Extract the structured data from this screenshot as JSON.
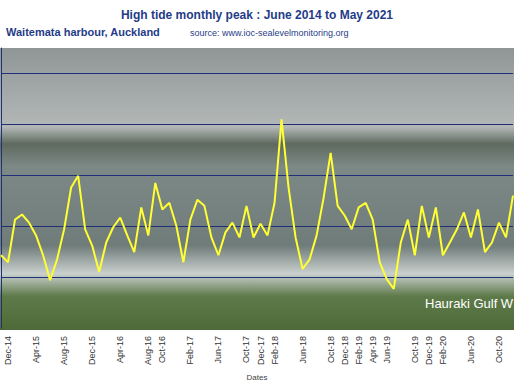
{
  "chart_data": {
    "type": "line",
    "title": "High tide monthly peak : June 2014 to May 2021",
    "subtitle": "Waitemata harbour, Auckland",
    "annotations": [
      "source: www.ioc-sealevelmonitoring.org",
      "Hauraki Gulf W"
    ],
    "x_label": "Dates",
    "categories": [
      null,
      "Dec-14",
      null,
      null,
      null,
      "Apr-15",
      null,
      null,
      null,
      "Aug-15",
      null,
      null,
      null,
      "Dec-15",
      null,
      null,
      null,
      "Apr-16",
      null,
      null,
      null,
      "Aug-16",
      null,
      "Oct-16",
      null,
      null,
      null,
      "Feb-17",
      null,
      null,
      null,
      "Jun-17",
      null,
      null,
      null,
      "Oct-17",
      null,
      "Dec-17",
      null,
      "Feb-18",
      null,
      null,
      null,
      "Jun-18",
      null,
      null,
      null,
      "Oct-18",
      null,
      "Dec-18",
      null,
      "Feb-19",
      null,
      "Apr-19",
      null,
      "Jun-19",
      null,
      null,
      null,
      "Oct-19",
      null,
      "Dec-19",
      null,
      "Feb-20",
      null,
      null,
      null,
      "Jun-20",
      null,
      null,
      null,
      "Oct-20",
      null,
      null
    ],
    "values": [
      0.43,
      0.29,
      1.13,
      1.23,
      1.07,
      0.82,
      0.43,
      -0.06,
      0.35,
      0.94,
      1.76,
      1.99,
      0.94,
      0.62,
      0.1,
      0.68,
      0.98,
      1.17,
      0.82,
      0.49,
      1.37,
      0.82,
      1.85,
      1.33,
      1.46,
      1.01,
      0.29,
      1.13,
      1.52,
      1.4,
      0.78,
      0.43,
      0.88,
      1.07,
      0.78,
      1.4,
      0.78,
      1.05,
      0.82,
      1.46,
      3.1,
      1.76,
      0.78,
      0.16,
      0.35,
      0.82,
      1.56,
      2.44,
      1.4,
      1.21,
      0.94,
      1.37,
      1.46,
      1.13,
      0.29,
      -0.04,
      -0.23,
      0.68,
      1.13,
      0.43,
      1.4,
      0.78,
      1.37,
      0.43,
      0.68,
      0.94,
      1.27,
      0.78,
      1.33,
      0.49,
      0.68,
      1.07,
      0.78,
      1.6
    ],
    "color": "#ffff33",
    "ylim": [
      -1,
      4.5
    ],
    "yticks": [
      0,
      1,
      2,
      3,
      4
    ],
    "grid": true,
    "tick_labels": "x"
  }
}
